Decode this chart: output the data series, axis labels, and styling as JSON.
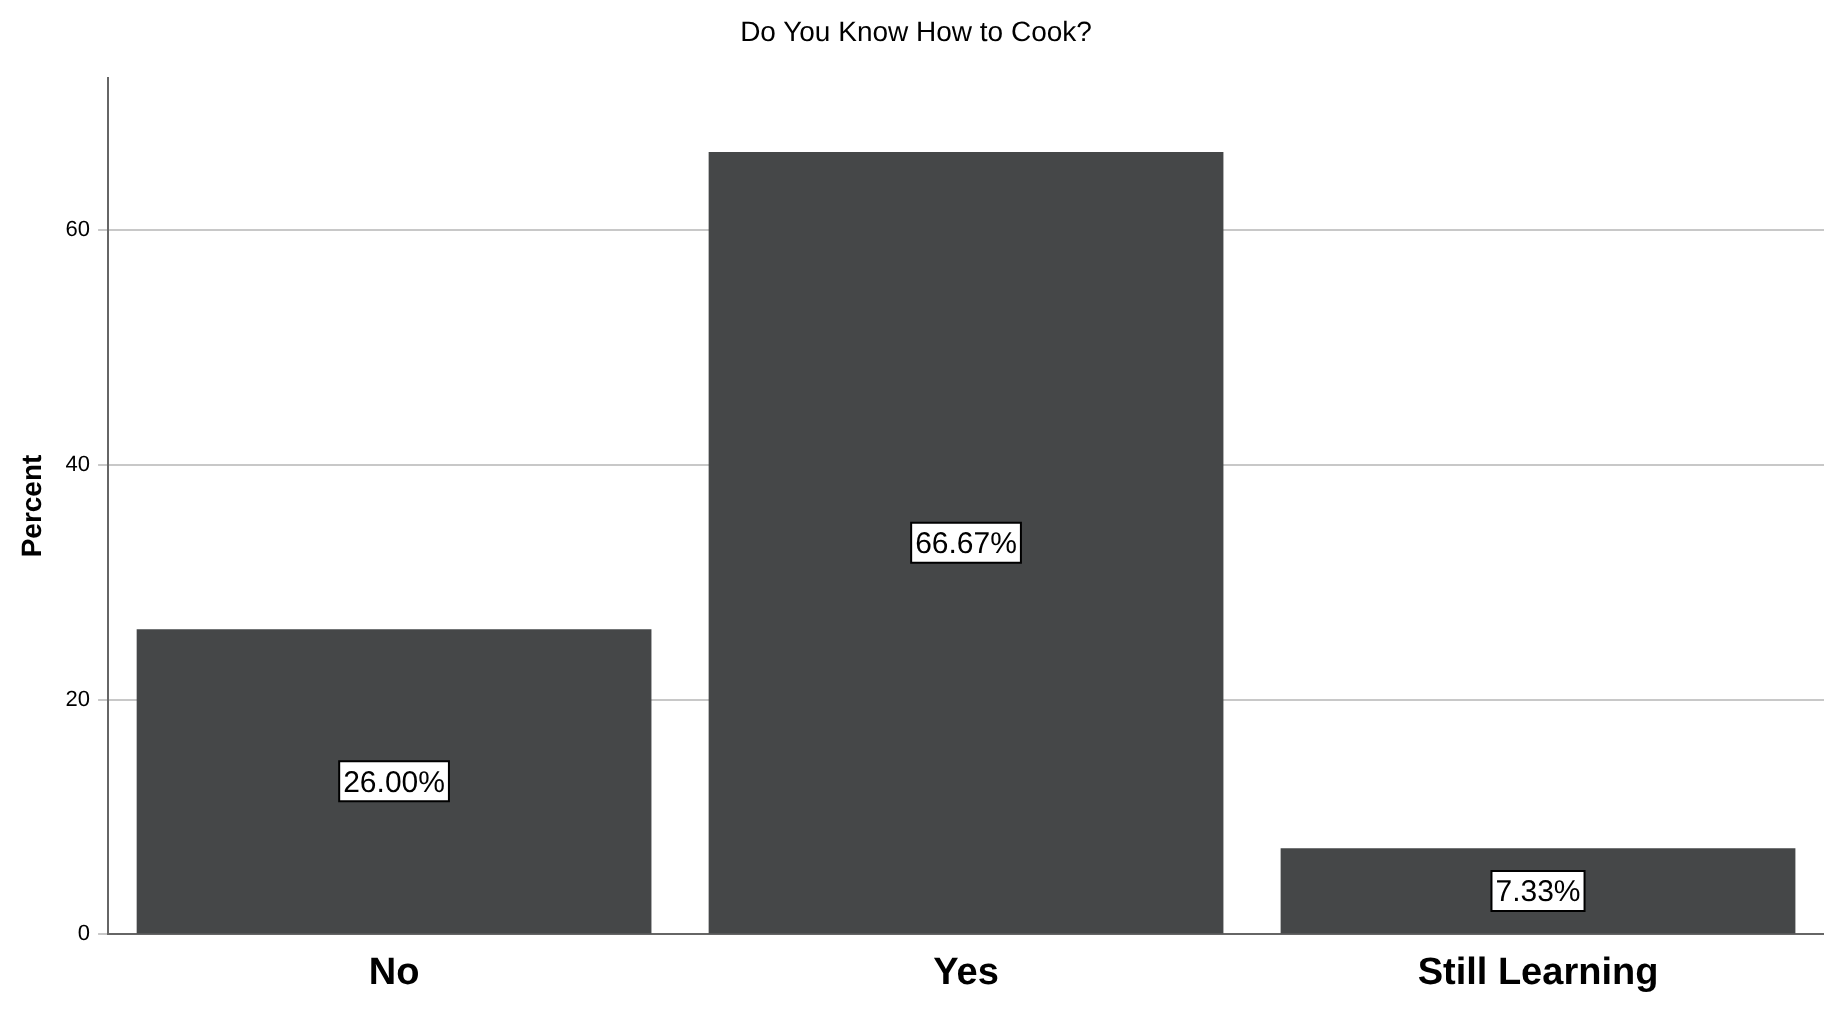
{
  "chart_data": {
    "type": "bar",
    "title": "Do You Know How to Cook?",
    "ylabel": "Percent",
    "categories": [
      "No",
      "Yes",
      "Still Learning"
    ],
    "values": [
      26,
      66.67,
      7.33
    ],
    "value_labels": [
      "26.00%",
      "66.67%",
      "7.33%"
    ],
    "color": "#454748",
    "ylim": [
      0,
      73
    ],
    "yticks": [
      0,
      20,
      40,
      60
    ],
    "grid": "y"
  }
}
